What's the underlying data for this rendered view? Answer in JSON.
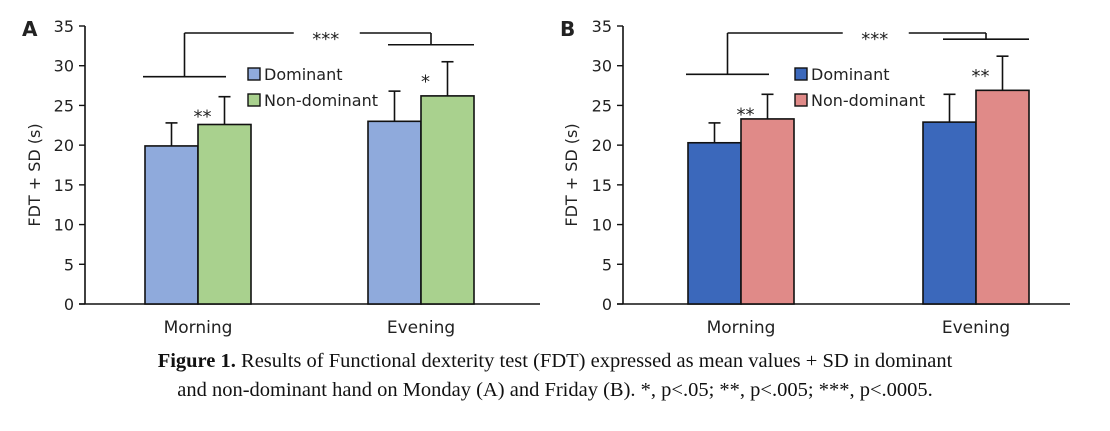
{
  "chart_data": [
    {
      "type": "bar",
      "panel_label": "A",
      "title": "",
      "xlabel": "",
      "ylabel": "FDT + SD (s)",
      "ylim": [
        0,
        35
      ],
      "yticks": [
        0,
        5,
        10,
        15,
        20,
        25,
        30,
        35
      ],
      "grid": false,
      "legend": "top-center",
      "categories": [
        "Morning",
        "Evening"
      ],
      "series": [
        {
          "name": "Dominant",
          "color": "#8faadc",
          "values": [
            19.9,
            23.0
          ],
          "sd": [
            2.9,
            3.8
          ]
        },
        {
          "name": "Non-dominant",
          "color": "#a9d18e",
          "values": [
            22.6,
            26.2
          ],
          "sd": [
            3.5,
            4.3
          ]
        }
      ],
      "annotations": {
        "within_category": [
          "**",
          "*"
        ],
        "between_categories": "***"
      }
    },
    {
      "type": "bar",
      "panel_label": "B",
      "title": "",
      "xlabel": "",
      "ylabel": "FDT + SD (s)",
      "ylim": [
        0,
        35
      ],
      "yticks": [
        0,
        5,
        10,
        15,
        20,
        25,
        30,
        35
      ],
      "grid": false,
      "legend": "top-center",
      "categories": [
        "Morning",
        "Evening"
      ],
      "series": [
        {
          "name": "Dominant",
          "color": "#3b68bb",
          "values": [
            20.3,
            22.9
          ],
          "sd": [
            2.5,
            3.5
          ]
        },
        {
          "name": "Non-dominant",
          "color": "#e08a88",
          "values": [
            23.3,
            26.9
          ],
          "sd": [
            3.1,
            4.3
          ]
        }
      ],
      "annotations": {
        "within_category": [
          "**",
          "**"
        ],
        "between_categories": "***"
      }
    }
  ],
  "caption": {
    "label": "Figure 1.",
    "line1": " Results of Functional dexterity test (FDT) expressed as mean values + SD in dominant",
    "line2": "and non-dominant hand on Monday (A) and Friday (B). *, p<.05; **, p<.005; ***, p<.0005."
  }
}
